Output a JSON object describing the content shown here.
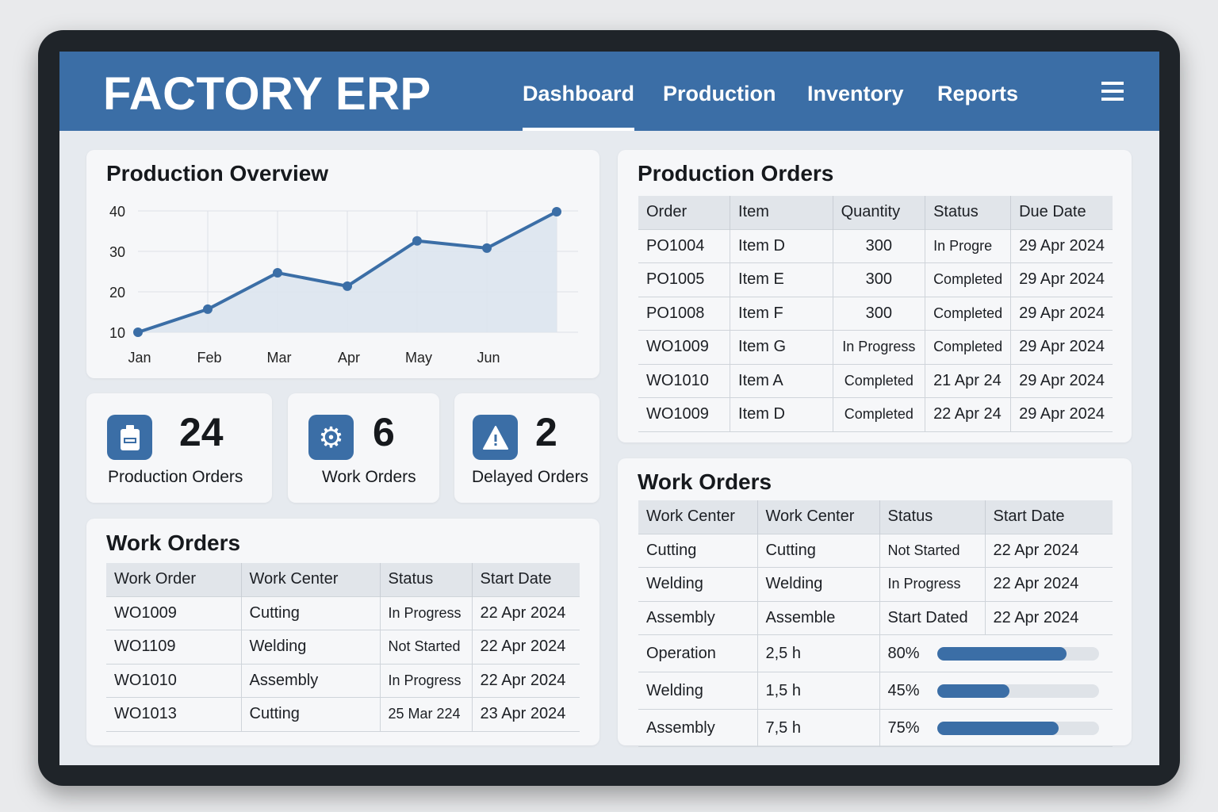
{
  "header": {
    "title": "FACTORY ERP",
    "nav": [
      "Dashboard",
      "Production",
      "Inventory",
      "Reports"
    ],
    "active": "Dashboard"
  },
  "colors": {
    "accent": "#3b6ea6",
    "background": "#e6eaef",
    "card": "#f6f7f9"
  },
  "overview": {
    "title": "Production Overview"
  },
  "chart_data": {
    "type": "area",
    "title": "Production Overview",
    "categories": [
      "Jan",
      "Feb",
      "Mar",
      "Apr",
      "May",
      "Jun",
      ""
    ],
    "values": [
      10,
      15.7,
      24.7,
      21.4,
      32.6,
      30.8,
      39.8
    ],
    "yticks": [
      10,
      20,
      30,
      40
    ],
    "ylim": [
      10,
      40
    ],
    "xlabel": "",
    "ylabel": "",
    "grid": true
  },
  "stats": [
    {
      "value": "24",
      "label": "Production Orders",
      "icon": "clipboard-icon"
    },
    {
      "value": "6",
      "label": "Work Orders",
      "icon": "gear-icon"
    },
    {
      "value": "2",
      "label": "Delayed Orders",
      "icon": "warning-icon"
    }
  ],
  "work_orders_left": {
    "title": "Work Orders",
    "columns": [
      "Work Order",
      "Work Center",
      "Status",
      "Start Date"
    ],
    "rows": [
      [
        "WO1009",
        "Cutting",
        "In Progress",
        "22 Apr 2024"
      ],
      [
        "WO1109",
        "Welding",
        "Not Started",
        "22 Apr 2024"
      ],
      [
        "WO1010",
        "Assembly",
        "In Progress",
        "22 Apr 2024"
      ],
      [
        "WO1013",
        "Cutting",
        "25 Mar 224",
        "23 Apr 2024"
      ]
    ]
  },
  "production_orders": {
    "title": "Production Orders",
    "columns": [
      "Order",
      "Item",
      "Quantity",
      "Status",
      "Due Date"
    ],
    "rows": [
      [
        "PO1004",
        "Item D",
        "300",
        "In Progre",
        "29 Apr 2024"
      ],
      [
        "PO1005",
        "Item E",
        "300",
        "Completed",
        "29 Apr 2024"
      ],
      [
        "PO1008",
        "Item F",
        "300",
        "Completed",
        "29 Apr 2024"
      ],
      [
        "WO1009",
        "Item G",
        "In Progress",
        "Completed",
        "29 Apr 2024"
      ],
      [
        "WO1010",
        "Item A",
        "Completed",
        "21 Apr 24",
        "29 Apr 2024"
      ],
      [
        "WO1009",
        "Item D",
        "Completed",
        "22 Apr 24",
        "29 Apr 2024"
      ]
    ]
  },
  "work_orders_right": {
    "title": "Work Orders",
    "columns": [
      "Work Center",
      "Work Center",
      "Status",
      "Start Date"
    ],
    "rows": [
      [
        "Cutting",
        "Cutting",
        "Not Started",
        "22 Apr 2024"
      ],
      [
        "Welding",
        "Welding",
        "In Progress",
        "22 Apr 2024"
      ],
      [
        "Assembly",
        "Assemble",
        "Start Dated",
        "22 Apr 2024"
      ]
    ],
    "progress_rows": [
      {
        "name": "Operation",
        "hours": "2,5 h",
        "percent_label": "80%",
        "percent": 80
      },
      {
        "name": "Welding",
        "hours": "1,5 h",
        "percent_label": "45%",
        "percent": 45
      },
      {
        "name": "Assembly",
        "hours": "7,5 h",
        "percent_label": "75%",
        "percent": 75
      }
    ]
  }
}
